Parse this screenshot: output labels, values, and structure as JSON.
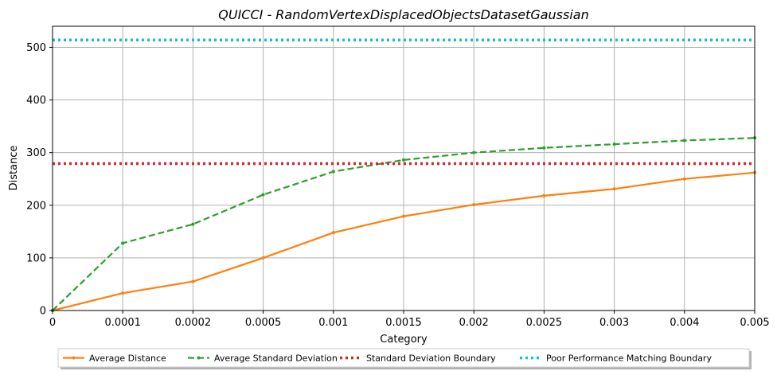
{
  "chart_data": {
    "type": "line",
    "title": "QUICCI - RandomVertexDisplacedObjectsDatasetGaussian",
    "xlabel": "Category",
    "ylabel": "Distance",
    "categories": [
      "0",
      "0.0001",
      "0.0002",
      "0.0005",
      "0.001",
      "0.0015",
      "0.002",
      "0.0025",
      "0.003",
      "0.004",
      "0.005"
    ],
    "ylim": [
      0,
      540
    ],
    "yticks": [
      0,
      100,
      200,
      300,
      400,
      500
    ],
    "grid": true,
    "legend_position": "bottom-center",
    "series": [
      {
        "name": "Average Distance",
        "color": "#ff7f0e",
        "style": "solid-markers",
        "values": [
          0,
          33,
          55,
          100,
          148,
          179,
          201,
          218,
          231,
          250,
          262
        ]
      },
      {
        "name": "Average Standard Deviation",
        "color": "#2ca02c",
        "style": "dashed-markers",
        "values": [
          0,
          128,
          164,
          220,
          264,
          286,
          300,
          309,
          316,
          323,
          328
        ]
      },
      {
        "name": "Standard Deviation Boundary",
        "color": "#d62728",
        "style": "dotted",
        "values": [
          279,
          279,
          279,
          279,
          279,
          279,
          279,
          279,
          279,
          279,
          279
        ]
      },
      {
        "name": "Poor Performance Matching Boundary",
        "color": "#17becf",
        "style": "dotted",
        "values": [
          514,
          514,
          514,
          514,
          514,
          514,
          514,
          514,
          514,
          514,
          514
        ]
      }
    ]
  }
}
